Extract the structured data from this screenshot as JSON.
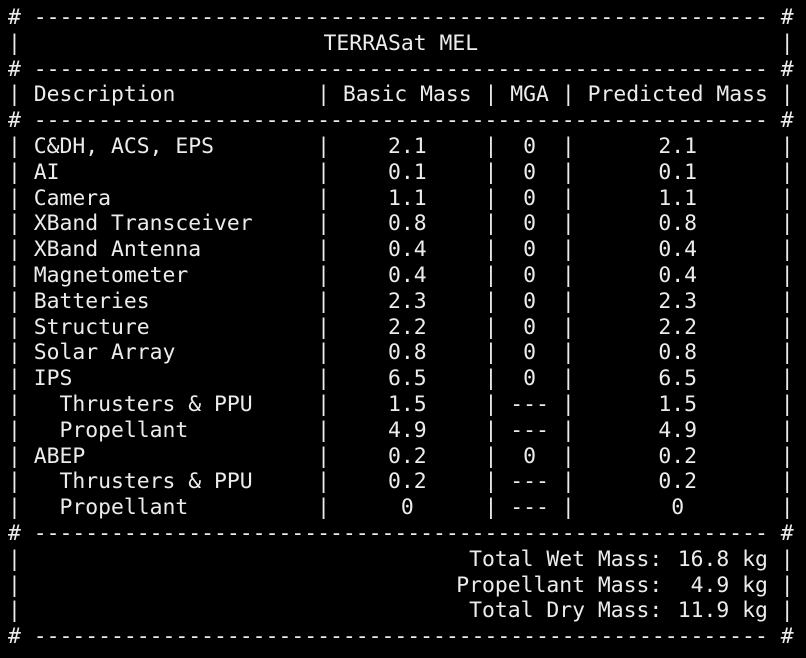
{
  "title": "TERRASat MEL",
  "columns": [
    "Description",
    "Basic Mass",
    "MGA",
    "Predicted Mass"
  ],
  "rows": [
    {
      "cells": [
        "C&DH, ACS, EPS",
        2.1,
        0,
        2.1
      ]
    },
    {
      "cells": [
        "AI",
        0.1,
        0,
        0.1
      ]
    },
    {
      "cells": [
        "Camera",
        1.1,
        0,
        1.1
      ]
    },
    {
      "cells": [
        "XBand Transceiver",
        0.8,
        0,
        0.8
      ]
    },
    {
      "cells": [
        "XBand Antenna",
        0.4,
        0,
        0.4
      ]
    },
    {
      "cells": [
        "Magnetometer",
        0.4,
        0,
        0.4
      ]
    },
    {
      "cells": [
        "Batteries",
        2.3,
        0,
        2.3
      ]
    },
    {
      "cells": [
        "Structure",
        2.2,
        0,
        2.2
      ]
    },
    {
      "cells": [
        "Solar Array",
        0.8,
        0,
        0.8
      ]
    },
    {
      "cells": [
        "IPS",
        6.5,
        0,
        6.5
      ],
      "sub_rows": [
        [
          "Thrusters & PPU",
          1.5,
          "---",
          1.5
        ],
        [
          "Propellant",
          4.9,
          "---",
          4.9
        ]
      ]
    },
    {
      "cells": [
        "ABEP",
        0.2,
        0,
        0.2
      ],
      "sub_rows": [
        [
          "Thrusters & PPU",
          0.2,
          "---",
          0.2
        ],
        [
          "Propellant",
          0,
          "---",
          0
        ]
      ]
    }
  ],
  "totals": [
    [
      "Total Wet Mass:",
      "16.8 kg"
    ],
    [
      "Propellant Mass:",
      "4.9 kg"
    ],
    [
      "Total Dry Mass:",
      "11.9 kg"
    ]
  ]
}
